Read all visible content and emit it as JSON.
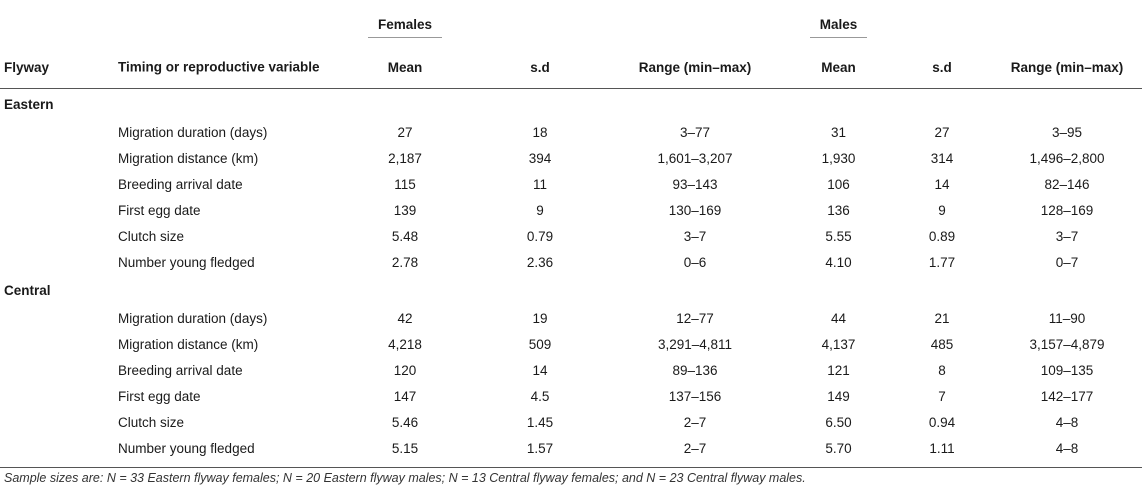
{
  "header": {
    "females_label": "Females",
    "males_label": "Males",
    "flyway_label": "Flyway",
    "variable_label": "Timing or reproductive variable",
    "mean_label": "Mean",
    "sd_label": "s.d",
    "range_label": "Range (min–max)"
  },
  "sections": [
    {
      "name": "Eastern",
      "rows": [
        {
          "variable": "Migration duration (days)",
          "f_mean": "27",
          "f_sd": "18",
          "f_range": "3–77",
          "m_mean": "31",
          "m_sd": "27",
          "m_range": "3–95"
        },
        {
          "variable": "Migration distance (km)",
          "f_mean": "2,187",
          "f_sd": "394",
          "f_range": "1,601–3,207",
          "m_mean": "1,930",
          "m_sd": "314",
          "m_range": "1,496–2,800"
        },
        {
          "variable": "Breeding arrival date",
          "f_mean": "115",
          "f_sd": "11",
          "f_range": "93–143",
          "m_mean": "106",
          "m_sd": "14",
          "m_range": "82–146"
        },
        {
          "variable": "First egg date",
          "f_mean": "139",
          "f_sd": "9",
          "f_range": "130–169",
          "m_mean": "136",
          "m_sd": "9",
          "m_range": "128–169"
        },
        {
          "variable": "Clutch size",
          "f_mean": "5.48",
          "f_sd": "0.79",
          "f_range": "3–7",
          "m_mean": "5.55",
          "m_sd": "0.89",
          "m_range": "3–7"
        },
        {
          "variable": "Number young fledged",
          "f_mean": "2.78",
          "f_sd": "2.36",
          "f_range": "0–6",
          "m_mean": "4.10",
          "m_sd": "1.77",
          "m_range": "0–7"
        }
      ]
    },
    {
      "name": "Central",
      "rows": [
        {
          "variable": "Migration duration (days)",
          "f_mean": "42",
          "f_sd": "19",
          "f_range": "12–77",
          "m_mean": "44",
          "m_sd": "21",
          "m_range": "11–90"
        },
        {
          "variable": "Migration distance (km)",
          "f_mean": "4,218",
          "f_sd": "509",
          "f_range": "3,291–4,811",
          "m_mean": "4,137",
          "m_sd": "485",
          "m_range": "3,157–4,879"
        },
        {
          "variable": "Breeding arrival date",
          "f_mean": "120",
          "f_sd": "14",
          "f_range": "89–136",
          "m_mean": "121",
          "m_sd": "8",
          "m_range": "109–135"
        },
        {
          "variable": "First egg date",
          "f_mean": "147",
          "f_sd": "4.5",
          "f_range": "137–156",
          "m_mean": "149",
          "m_sd": "7",
          "m_range": "142–177"
        },
        {
          "variable": "Clutch size",
          "f_mean": "5.46",
          "f_sd": "1.45",
          "f_range": "2–7",
          "m_mean": "6.50",
          "m_sd": "0.94",
          "m_range": "4–8"
        },
        {
          "variable": "Number young fledged",
          "f_mean": "5.15",
          "f_sd": "1.57",
          "f_range": "2–7",
          "m_mean": "5.70",
          "m_sd": "1.11",
          "m_range": "4–8"
        }
      ]
    }
  ],
  "footnote": "Sample sizes are: N = 33 Eastern flyway females; N = 20 Eastern flyway males; N = 13 Central flyway females; and N = 23 Central flyway males."
}
